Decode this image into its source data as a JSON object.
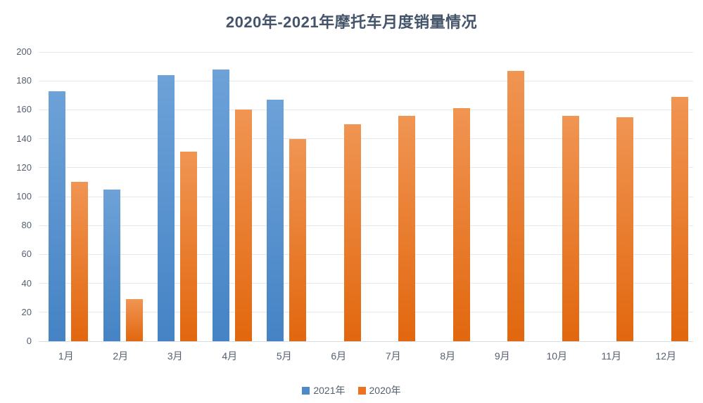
{
  "chart_data": {
    "type": "bar",
    "title": "2020年-2021年摩托车月度销量情况",
    "categories": [
      "1月",
      "2月",
      "3月",
      "4月",
      "5月",
      "6月",
      "7月",
      "8月",
      "9月",
      "10月",
      "11月",
      "12月"
    ],
    "series": [
      {
        "name": "2021年",
        "values": [
          173,
          105,
          184,
          188,
          167,
          null,
          null,
          null,
          null,
          null,
          null,
          null
        ],
        "color_top": "#6DA2D8",
        "color_bottom": "#4583C5",
        "legend_color": "#4E8AC8"
      },
      {
        "name": "2020年",
        "values": [
          110,
          29,
          131,
          160,
          140,
          150,
          156,
          161,
          187,
          156,
          155,
          169
        ],
        "color_top": "#F09553",
        "color_bottom": "#E2670E",
        "legend_color": "#ED7120"
      }
    ],
    "ylabel": "",
    "xlabel": "",
    "ylim": [
      0,
      200
    ],
    "ytick_step": 20,
    "ytick_labels": [
      "0",
      "20",
      "40",
      "60",
      "80",
      "100",
      "120",
      "140",
      "160",
      "180",
      "200"
    ],
    "grid": true,
    "legend_position": "bottom"
  },
  "colors": {
    "title_text": "#44546A",
    "axis_text": "#545F6F",
    "legend_text": "#545F6F",
    "gridline": "#E3E8F0",
    "baseline": "#D6DCE5",
    "background": "#FFFFFF"
  }
}
